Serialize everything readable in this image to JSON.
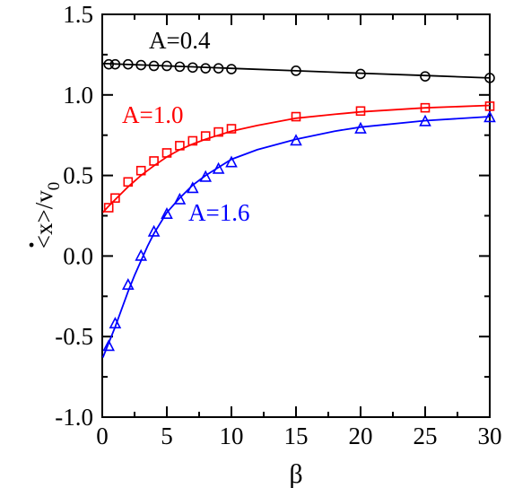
{
  "chart_data": {
    "type": "line",
    "xlabel": "β",
    "ylabel": "<ẋ>/v0",
    "ylabel_parts": {
      "lt": "<",
      "x": "x",
      "dot": "·",
      "gt": ">",
      "slash": "/",
      "v": "v",
      "sub": "0"
    },
    "xlim": [
      0,
      30
    ],
    "ylim": [
      -1.0,
      1.5
    ],
    "x_ticks": [
      0,
      5,
      10,
      15,
      20,
      25,
      30
    ],
    "x_tick_labels": [
      "0",
      "5",
      "10",
      "15",
      "20",
      "25",
      "30"
    ],
    "y_ticks": [
      -1.0,
      -0.5,
      0.0,
      0.5,
      1.0,
      1.5
    ],
    "y_tick_labels": [
      "-1.0",
      "-0.5",
      "0.0",
      "0.5",
      "1.0",
      "1.5"
    ],
    "grid": false,
    "series": [
      {
        "name": "A=0.4",
        "color": "#000000",
        "marker": "circle",
        "curve": [
          [
            0.05,
            1.195
          ],
          [
            0.5,
            1.194
          ],
          [
            1,
            1.192
          ],
          [
            2,
            1.189
          ],
          [
            3,
            1.186
          ],
          [
            4,
            1.183
          ],
          [
            5,
            1.18
          ],
          [
            6,
            1.177
          ],
          [
            7,
            1.174
          ],
          [
            8,
            1.171
          ],
          [
            9,
            1.168
          ],
          [
            10,
            1.165
          ],
          [
            15,
            1.15
          ],
          [
            20,
            1.135
          ],
          [
            25,
            1.12
          ],
          [
            30,
            1.105
          ]
        ],
        "points": [
          [
            0.5,
            1.19
          ],
          [
            1,
            1.19
          ],
          [
            2,
            1.19
          ],
          [
            3,
            1.185
          ],
          [
            4,
            1.18
          ],
          [
            5,
            1.18
          ],
          [
            6,
            1.175
          ],
          [
            7,
            1.17
          ],
          [
            8,
            1.165
          ],
          [
            9,
            1.165
          ],
          [
            10,
            1.16
          ],
          [
            15,
            1.15
          ],
          [
            20,
            1.13
          ],
          [
            25,
            1.115
          ],
          [
            30,
            1.105
          ]
        ]
      },
      {
        "name": "A=1.0",
        "color": "#ff0000",
        "marker": "square",
        "curve": [
          [
            0.05,
            0.27
          ],
          [
            0.5,
            0.31
          ],
          [
            1,
            0.35
          ],
          [
            1.5,
            0.39
          ],
          [
            2,
            0.43
          ],
          [
            2.5,
            0.465
          ],
          [
            3,
            0.5
          ],
          [
            3.5,
            0.53
          ],
          [
            4,
            0.56
          ],
          [
            5,
            0.615
          ],
          [
            6,
            0.66
          ],
          [
            7,
            0.695
          ],
          [
            8,
            0.725
          ],
          [
            9,
            0.75
          ],
          [
            10,
            0.775
          ],
          [
            12,
            0.81
          ],
          [
            15,
            0.855
          ],
          [
            18,
            0.88
          ],
          [
            20,
            0.895
          ],
          [
            25,
            0.92
          ],
          [
            30,
            0.935
          ]
        ],
        "points": [
          [
            0.5,
            0.3
          ],
          [
            1,
            0.36
          ],
          [
            2,
            0.46
          ],
          [
            3,
            0.53
          ],
          [
            4,
            0.59
          ],
          [
            5,
            0.64
          ],
          [
            6,
            0.685
          ],
          [
            7,
            0.715
          ],
          [
            8,
            0.745
          ],
          [
            9,
            0.77
          ],
          [
            10,
            0.79
          ],
          [
            15,
            0.865
          ],
          [
            20,
            0.9
          ],
          [
            25,
            0.92
          ],
          [
            30,
            0.93
          ]
        ]
      },
      {
        "name": "A=1.6",
        "color": "#0000ff",
        "marker": "triangle",
        "curve": [
          [
            0.05,
            -0.63
          ],
          [
            0.5,
            -0.54
          ],
          [
            1,
            -0.44
          ],
          [
            1.5,
            -0.33
          ],
          [
            2,
            -0.22
          ],
          [
            2.5,
            -0.12
          ],
          [
            3,
            -0.03
          ],
          [
            3.5,
            0.06
          ],
          [
            4,
            0.14
          ],
          [
            5,
            0.27
          ],
          [
            6,
            0.36
          ],
          [
            7,
            0.44
          ],
          [
            8,
            0.5
          ],
          [
            9,
            0.55
          ],
          [
            10,
            0.6
          ],
          [
            12,
            0.66
          ],
          [
            15,
            0.725
          ],
          [
            18,
            0.775
          ],
          [
            20,
            0.8
          ],
          [
            25,
            0.84
          ],
          [
            30,
            0.865
          ]
        ],
        "points": [
          [
            0.5,
            -0.56
          ],
          [
            1,
            -0.42
          ],
          [
            2,
            -0.18
          ],
          [
            3,
            0.0
          ],
          [
            4,
            0.15
          ],
          [
            5,
            0.26
          ],
          [
            6,
            0.35
          ],
          [
            7,
            0.42
          ],
          [
            8,
            0.49
          ],
          [
            9,
            0.54
          ],
          [
            10,
            0.58
          ],
          [
            15,
            0.715
          ],
          [
            20,
            0.79
          ],
          [
            25,
            0.835
          ],
          [
            30,
            0.86
          ]
        ]
      }
    ],
    "labels": [
      {
        "text": "A=0.4",
        "series": 0,
        "color": "#000000"
      },
      {
        "text": "A=1.0",
        "series": 1,
        "color": "#ff0000"
      },
      {
        "text": "A=1.6",
        "series": 2,
        "color": "#0000ff"
      }
    ]
  }
}
